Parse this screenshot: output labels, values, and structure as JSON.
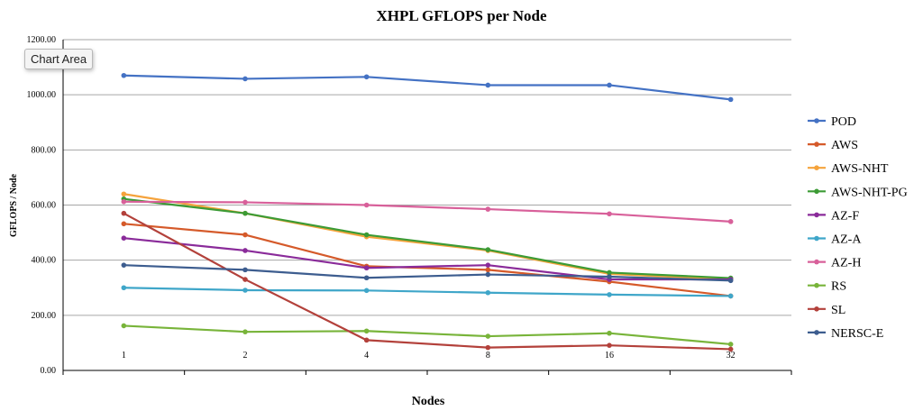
{
  "chart_data": {
    "type": "line",
    "title": "XHPL GFLOPS per Node",
    "xlabel": "Nodes",
    "ylabel": "GFLOPS / Node",
    "categories": [
      "1",
      "2",
      "4",
      "8",
      "16",
      "32"
    ],
    "ylim": [
      0,
      1200
    ],
    "y_ticks": [
      "0.00",
      "200.00",
      "400.00",
      "600.00",
      "800.00",
      "1000.00",
      "1200.00"
    ],
    "grid": true,
    "legend_position": "right",
    "series": [
      {
        "name": "POD",
        "color": "#4472c4",
        "values": [
          1070,
          1058,
          1065,
          1035,
          1035,
          983
        ]
      },
      {
        "name": "AWS",
        "color": "#d55a2a",
        "values": [
          532,
          492,
          378,
          365,
          322,
          270
        ]
      },
      {
        "name": "AWS-NHT",
        "color": "#f5a33c",
        "values": [
          640,
          570,
          485,
          435,
          350,
          330
        ]
      },
      {
        "name": "AWS-NHT-PG",
        "color": "#3c9b35",
        "values": [
          622,
          570,
          492,
          438,
          355,
          335
        ]
      },
      {
        "name": "AZ-F",
        "color": "#8a2b9a",
        "values": [
          480,
          435,
          372,
          382,
          330,
          330
        ]
      },
      {
        "name": "AZ-A",
        "color": "#3fa6c9",
        "values": [
          300,
          291,
          290,
          282,
          275,
          270
        ]
      },
      {
        "name": "AZ-H",
        "color": "#d8609a",
        "values": [
          612,
          610,
          600,
          585,
          568,
          540
        ]
      },
      {
        "name": "RS",
        "color": "#78b43a",
        "values": [
          162,
          140,
          143,
          124,
          135,
          95
        ]
      },
      {
        "name": "SL",
        "color": "#b3413b",
        "values": [
          570,
          330,
          110,
          83,
          91,
          77
        ]
      },
      {
        "name": "NERSC-E",
        "color": "#3d5d8f",
        "values": [
          382,
          365,
          336,
          348,
          340,
          326
        ]
      }
    ]
  },
  "tooltip": {
    "label": "Chart Area"
  }
}
